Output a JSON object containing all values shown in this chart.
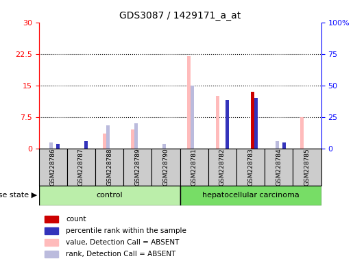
{
  "title": "GDS3087 / 1429171_a_at",
  "samples": [
    "GSM228786",
    "GSM228787",
    "GSM228788",
    "GSM228789",
    "GSM228790",
    "GSM228781",
    "GSM228782",
    "GSM228783",
    "GSM228784",
    "GSM228785"
  ],
  "groups": [
    "control",
    "control",
    "control",
    "control",
    "control",
    "hepatocellular carcinoma",
    "hepatocellular carcinoma",
    "hepatocellular carcinoma",
    "hepatocellular carcinoma",
    "hepatocellular carcinoma"
  ],
  "count": [
    0,
    0,
    0,
    0,
    0,
    0,
    0,
    13.5,
    0,
    0
  ],
  "percentile_rank": [
    1.2,
    1.8,
    0,
    0,
    0,
    0,
    11.5,
    12.0,
    1.5,
    0
  ],
  "value_absent": [
    0,
    0,
    3.5,
    4.5,
    0,
    22.0,
    12.5,
    0,
    0,
    7.5
  ],
  "rank_absent": [
    1.5,
    0,
    5.5,
    6.0,
    1.2,
    15.0,
    0,
    0,
    1.8,
    0
  ],
  "ylim_left": [
    0,
    30
  ],
  "ylim_right": [
    0,
    100
  ],
  "yticks_left": [
    0,
    7.5,
    15,
    22.5,
    30
  ],
  "yticks_right": [
    0,
    25,
    50,
    75,
    100
  ],
  "ytick_labels_left": [
    "0",
    "7.5",
    "15",
    "22.5",
    "30"
  ],
  "ytick_labels_right": [
    "0",
    "25",
    "50",
    "75",
    "100%"
  ],
  "color_count": "#cc0000",
  "color_percentile": "#3333bb",
  "color_value_absent": "#ffbbbb",
  "color_rank_absent": "#bbbbdd",
  "color_control_bg": "#bbeeaa",
  "color_hcc_bg": "#77dd66",
  "color_gray_bg": "#cccccc",
  "color_plot_bg": "#ffffff",
  "bar_width": 0.12,
  "legend_items": [
    "count",
    "percentile rank within the sample",
    "value, Detection Call = ABSENT",
    "rank, Detection Call = ABSENT"
  ],
  "n_control": 5,
  "n_hcc": 5
}
